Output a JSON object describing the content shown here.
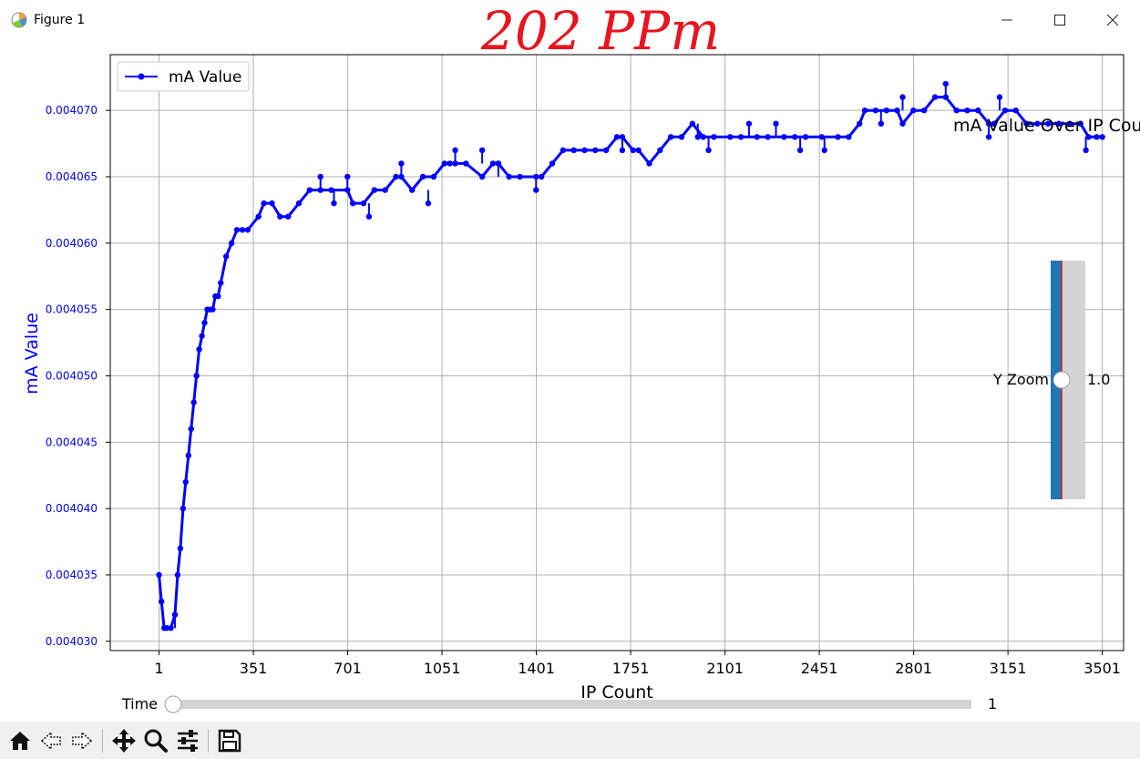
{
  "window": {
    "title": "Figure 1",
    "annotation": "202 PPm"
  },
  "chart_data": {
    "type": "line",
    "xlabel": "IP Count",
    "ylabel": "mA Value",
    "title": "mA Value Over IP Count",
    "legend": {
      "entries": [
        "mA Value"
      ],
      "placement": "top-left"
    },
    "grid": true,
    "xlim": [
      -180,
      3580
    ],
    "ylim": [
      0.0040293,
      0.0040742
    ],
    "xticks": [
      1,
      351,
      701,
      1051,
      1401,
      1751,
      2101,
      2451,
      2801,
      3151,
      3501
    ],
    "yticks": [
      0.00403,
      0.004035,
      0.00404,
      0.004045,
      0.00405,
      0.004055,
      0.00406,
      0.004065,
      0.00407
    ],
    "ytick_labels": [
      "0.004030",
      "0.004035",
      "0.004040",
      "0.004045",
      "0.004050",
      "0.004055",
      "0.004060",
      "0.004065",
      "0.004070"
    ],
    "series_color": "#0000ff",
    "series": [
      {
        "name": "mA Value",
        "x": [
          1,
          10,
          20,
          30,
          45,
          60,
          70,
          80,
          90,
          100,
          110,
          120,
          130,
          140,
          150,
          160,
          170,
          180,
          190,
          200,
          210,
          220,
          230,
          250,
          270,
          290,
          310,
          330,
          370,
          390,
          420,
          450,
          480,
          520,
          560,
          600,
          640,
          700,
          720,
          760,
          800,
          840,
          880,
          900,
          940,
          980,
          1020,
          1060,
          1080,
          1100,
          1140,
          1200,
          1240,
          1260,
          1300,
          1340,
          1400,
          1420,
          1460,
          1500,
          1540,
          1580,
          1620,
          1660,
          1700,
          1720,
          1760,
          1780,
          1820,
          1860,
          1900,
          1940,
          1980,
          2020,
          2060,
          2120,
          2160,
          2220,
          2260,
          2320,
          2360,
          2400,
          2460,
          2520,
          2560,
          2600,
          2620,
          2660,
          2700,
          2740,
          2760,
          2800,
          2840,
          2880,
          2920,
          2960,
          3000,
          3040,
          3080,
          3100,
          3140,
          3180,
          3220,
          3260,
          3300,
          3340,
          3380,
          3420,
          3450,
          3480,
          3501
        ],
        "y": [
          0.004035,
          0.004033,
          0.004031,
          0.004031,
          0.004031,
          0.004032,
          0.004035,
          0.004037,
          0.00404,
          0.004042,
          0.004044,
          0.004046,
          0.004048,
          0.00405,
          0.004052,
          0.004053,
          0.004054,
          0.004055,
          0.004055,
          0.004055,
          0.004056,
          0.004056,
          0.004057,
          0.004059,
          0.00406,
          0.004061,
          0.004061,
          0.004061,
          0.004062,
          0.004063,
          0.004063,
          0.004062,
          0.004062,
          0.004063,
          0.004064,
          0.004064,
          0.004064,
          0.004064,
          0.004063,
          0.004063,
          0.004064,
          0.004064,
          0.004065,
          0.004065,
          0.004064,
          0.004065,
          0.004065,
          0.004066,
          0.004066,
          0.004066,
          0.004066,
          0.004065,
          0.004066,
          0.004066,
          0.004065,
          0.004065,
          0.004065,
          0.004065,
          0.004066,
          0.004067,
          0.004067,
          0.004067,
          0.004067,
          0.004067,
          0.004068,
          0.004068,
          0.004067,
          0.004067,
          0.004066,
          0.004067,
          0.004068,
          0.004068,
          0.004069,
          0.004068,
          0.004068,
          0.004068,
          0.004068,
          0.004068,
          0.004068,
          0.004068,
          0.004068,
          0.004068,
          0.004068,
          0.004068,
          0.004068,
          0.004069,
          0.00407,
          0.00407,
          0.00407,
          0.00407,
          0.004069,
          0.00407,
          0.00407,
          0.004071,
          0.004071,
          0.00407,
          0.00407,
          0.00407,
          0.004069,
          0.004069,
          0.00407,
          0.00407,
          0.004069,
          0.004069,
          0.004069,
          0.004069,
          0.004069,
          0.004069,
          0.004068,
          0.004068,
          0.004068
        ]
      }
    ],
    "spikes": [
      [
        60,
        0.004031,
        0.004032
      ],
      [
        600,
        0.004064,
        0.004065
      ],
      [
        650,
        0.004064,
        0.004063
      ],
      [
        700,
        0.004064,
        0.004065
      ],
      [
        780,
        0.004063,
        0.004062
      ],
      [
        900,
        0.004065,
        0.004066
      ],
      [
        1000,
        0.004064,
        0.004063
      ],
      [
        1100,
        0.004066,
        0.004067
      ],
      [
        1200,
        0.004066,
        0.004067
      ],
      [
        1260,
        0.004065,
        0.004066
      ],
      [
        1400,
        0.004065,
        0.004064
      ],
      [
        1720,
        0.004068,
        0.004067
      ],
      [
        2000,
        0.004069,
        0.004068
      ],
      [
        2040,
        0.004068,
        0.004067
      ],
      [
        2190,
        0.004068,
        0.004069
      ],
      [
        2290,
        0.004068,
        0.004069
      ],
      [
        2380,
        0.004068,
        0.004067
      ],
      [
        2470,
        0.004068,
        0.004067
      ],
      [
        2680,
        0.00407,
        0.004069
      ],
      [
        2760,
        0.00407,
        0.004071
      ],
      [
        2920,
        0.004071,
        0.004072
      ],
      [
        3080,
        0.004069,
        0.004068
      ],
      [
        3120,
        0.00407,
        0.004071
      ],
      [
        3440,
        0.004068,
        0.004067
      ]
    ]
  },
  "widgets": {
    "yzoom": {
      "label": "Y Zoom",
      "value": "1.0",
      "level": 0.5
    },
    "time": {
      "label": "Time",
      "value": "1",
      "level": 0.0
    }
  },
  "toolbar": {
    "icons": [
      "home-icon",
      "back-icon",
      "forward-icon",
      "pan-icon",
      "zoom-icon",
      "configure-subplots-icon",
      "save-icon"
    ]
  }
}
